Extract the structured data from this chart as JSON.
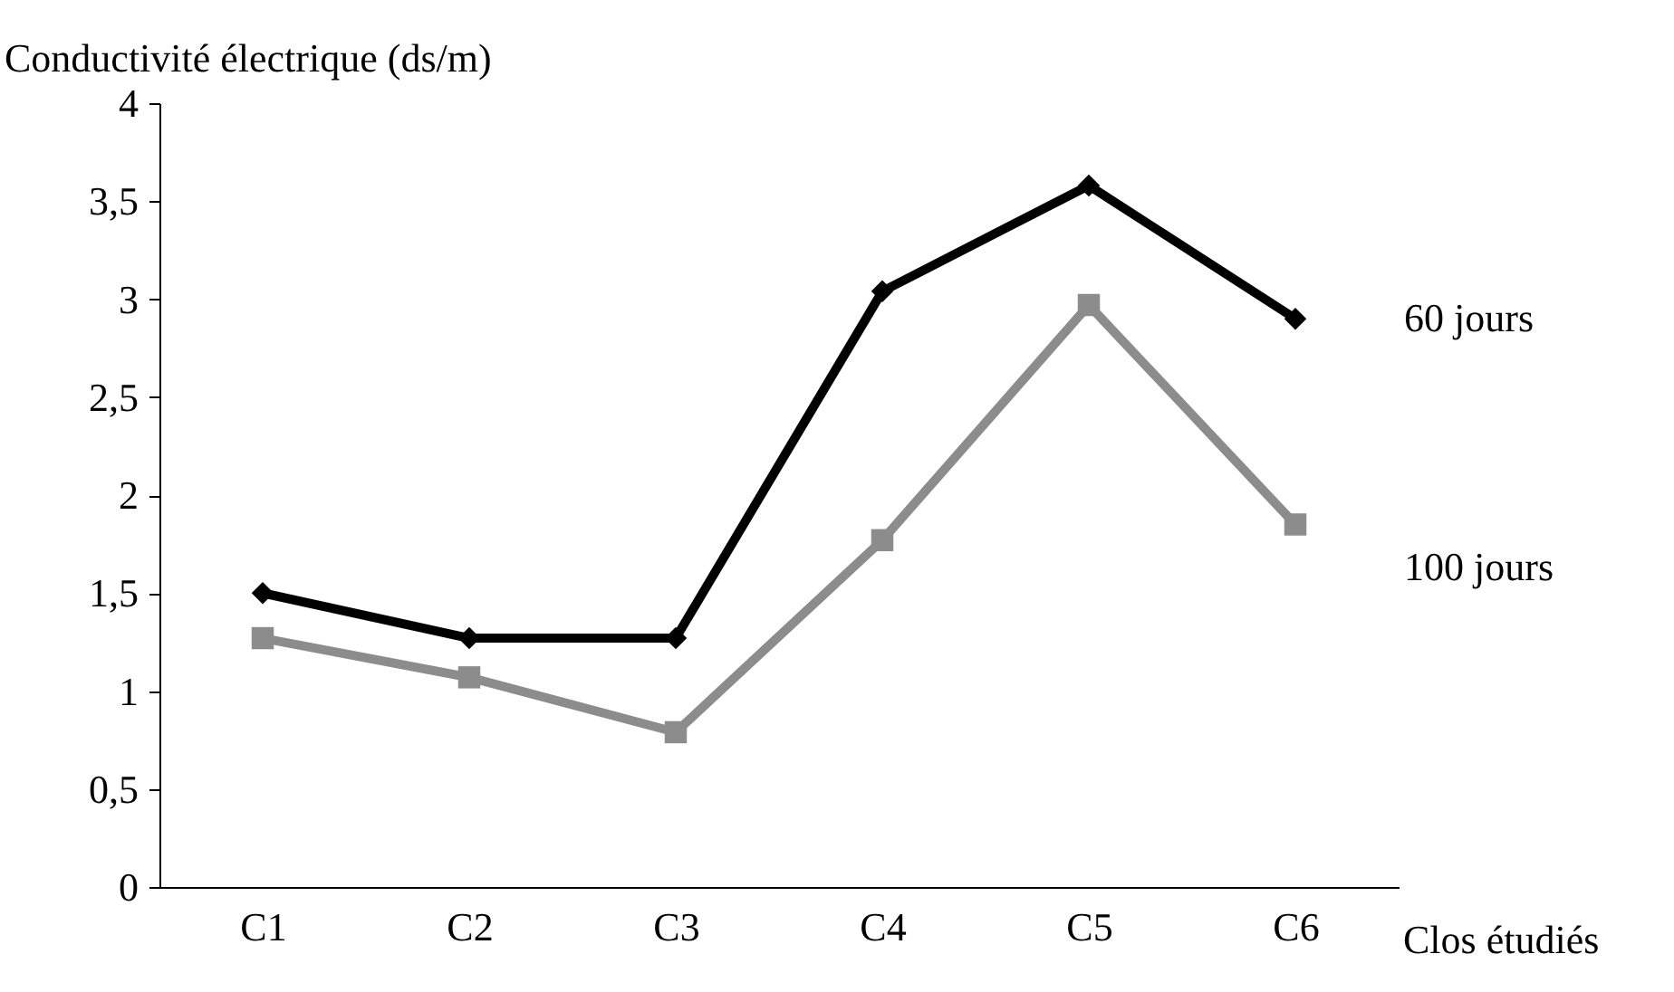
{
  "chart_data": {
    "type": "line",
    "ylabel": "Conductivité électrique (ds/m)",
    "xlabel": "Clos étudiés",
    "categories": [
      "C1",
      "C2",
      "C3",
      "C4",
      "C5",
      "C6"
    ],
    "series": [
      {
        "name": "60 jours",
        "color": "#000000",
        "marker": "diamond",
        "values": [
          1.5,
          1.27,
          1.27,
          3.04,
          3.58,
          2.9
        ]
      },
      {
        "name": "100 jours",
        "color": "#8c8c8c",
        "marker": "square",
        "values": [
          1.27,
          1.07,
          0.79,
          1.77,
          2.97,
          1.85
        ]
      }
    ],
    "ylim": [
      0,
      4
    ],
    "yticks": [
      0,
      {
        "value": 0.5,
        "label": "0,5"
      },
      1,
      {
        "value": 1.5,
        "label": "1,5"
      },
      2,
      {
        "value": 2.5,
        "label": "2,5"
      },
      3,
      {
        "value": 3.5,
        "label": "3,5"
      },
      4
    ],
    "grid": false,
    "legend": false,
    "line_style": "solid"
  }
}
